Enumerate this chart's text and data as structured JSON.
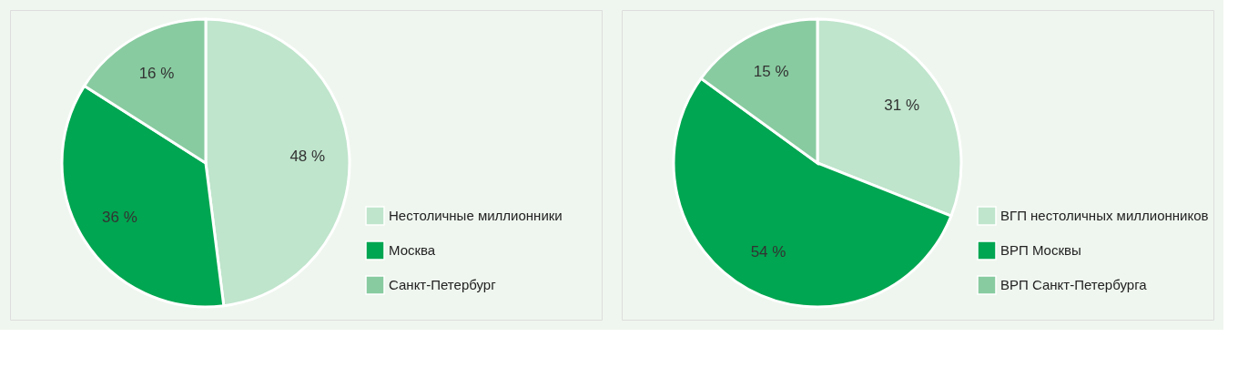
{
  "chart_data": [
    {
      "type": "pie",
      "categories": [
        "Нестоличные миллионники",
        "Москва",
        "Санкт-Петербург"
      ],
      "values": [
        48,
        36,
        16
      ],
      "colors": [
        "#bfe5cc",
        "#00a651",
        "#88cba0"
      ],
      "value_labels": [
        "48 %",
        "36 %",
        "16 %"
      ],
      "legend": "bottom right"
    },
    {
      "type": "pie",
      "categories": [
        "ВГП нестоличных миллионников",
        "ВРП Москвы",
        "ВРП Санкт-Петербурга"
      ],
      "values": [
        31,
        54,
        15
      ],
      "colors": [
        "#bfe5cc",
        "#00a651",
        "#88cba0"
      ],
      "value_labels": [
        "31 %",
        "54 %",
        "15 %"
      ],
      "legend": "bottom right"
    }
  ]
}
